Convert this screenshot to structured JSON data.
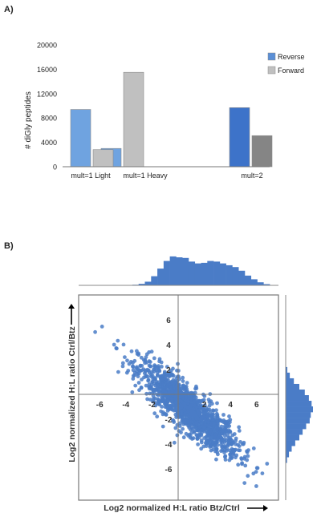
{
  "panel_a_label": "A)",
  "panel_b_label": "B)",
  "chart_data": [
    {
      "type": "bar",
      "ylabel": "# diGly peptides",
      "ylim": [
        0,
        20000
      ],
      "yticks": [
        "0",
        "4000",
        "8000",
        "12000",
        "16000",
        "20000"
      ],
      "categories": [
        "mult=1 Light",
        "mult=1 Heavy",
        "mult=2"
      ],
      "series": [
        {
          "name": "Reverse",
          "values": [
            9400,
            3000,
            9700
          ],
          "colors": [
            "#6fa3e0",
            "#6fa3e0",
            "#3d73c9"
          ]
        },
        {
          "name": "Forward",
          "values": [
            2800,
            15500,
            5100
          ],
          "colors": [
            "#c0c0c0",
            "#c0c0c0",
            "#858585"
          ]
        }
      ],
      "legend": "top-right"
    },
    {
      "type": "scatter",
      "xlabel": "Log2 normalized H:L ratio Btz/Ctrl",
      "ylabel": "Log2 normalized H:L ratio Ctrl/Btz",
      "xticks": [
        "-6",
        "-4",
        "-2",
        "2",
        "4",
        "6"
      ],
      "yticks": [
        "6",
        "4",
        "2",
        "-2",
        "-4",
        "-6"
      ],
      "xlim": [
        -8.2,
        8.2
      ],
      "ylim": [
        -8,
        8
      ],
      "color": "#4a7cc7",
      "trend": {
        "slope": -0.85,
        "center": [
          0.8,
          -1.2
        ],
        "spread_sd": 0.9,
        "x_sd": 1.9,
        "n_points": 1400
      },
      "marginal_histogram_x": [
        0.02,
        0.05,
        0.12,
        0.3,
        0.55,
        0.8,
        0.95,
        0.92,
        0.9,
        0.78,
        0.72,
        0.74,
        0.8,
        0.78,
        0.72,
        0.66,
        0.6,
        0.48,
        0.32,
        0.2,
        0.1,
        0.04
      ],
      "marginal_histogram_y": [
        0.06,
        0.15,
        0.3,
        0.5,
        0.7,
        0.85,
        0.95,
        1.0,
        0.92,
        0.88,
        0.75,
        0.62,
        0.5,
        0.35,
        0.22,
        0.12,
        0.05
      ],
      "marginal_x_range": [
        -3.5,
        7
      ],
      "marginal_y_range": [
        2.2,
        -5.5
      ]
    }
  ]
}
